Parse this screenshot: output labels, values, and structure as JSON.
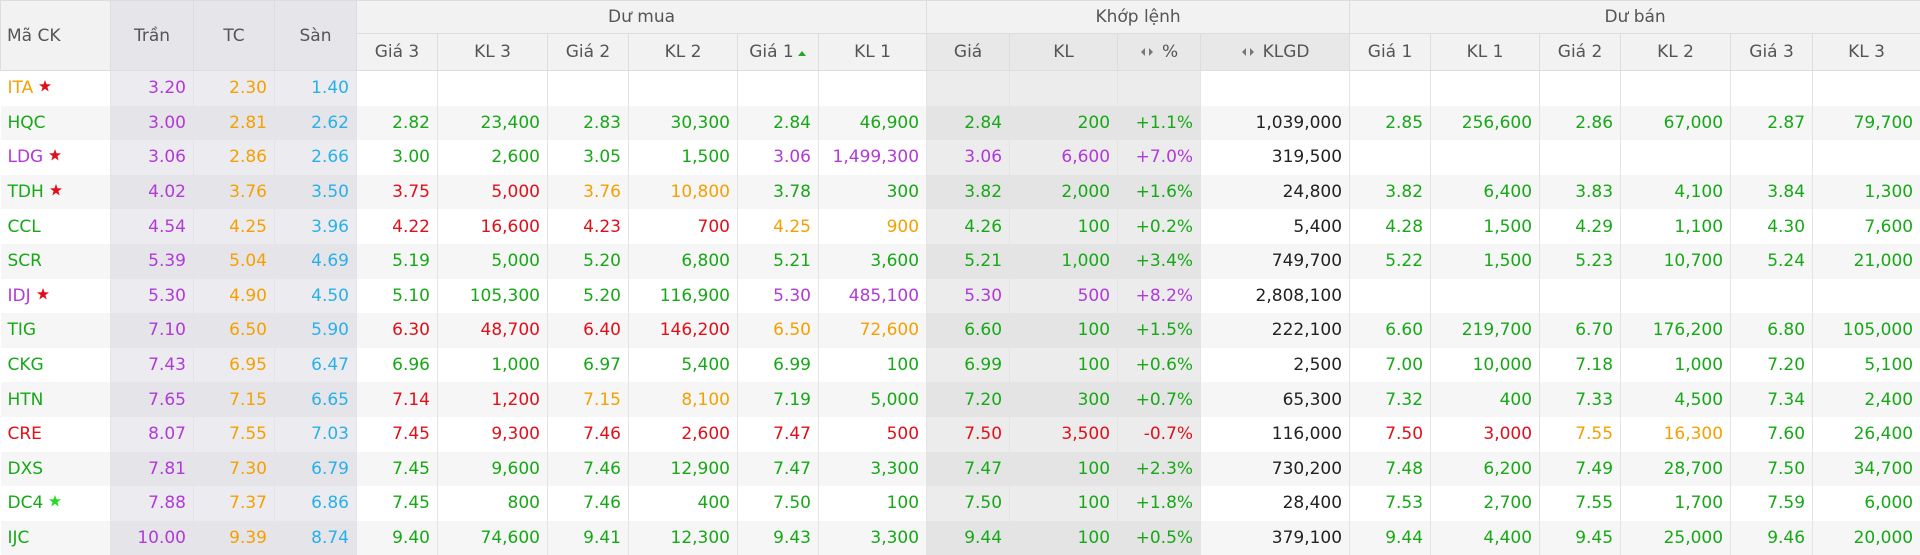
{
  "fixed_headers": [
    "Mã CK",
    "Trần",
    "TC",
    "Sàn"
  ],
  "groups": [
    "Dư mua",
    "Khớp lệnh",
    "Dư bán"
  ],
  "sub_headers": [
    "Giá 3",
    "KL 3",
    "Giá 2",
    "KL 2",
    "Giá 1",
    "KL 1",
    "Giá",
    "KL",
    "%",
    "KLGD",
    "Giá 1",
    "KL 1",
    "Giá 2",
    "KL 2",
    "Giá 3",
    "KL 3"
  ],
  "rows": [
    {
      "star": "#e0101a",
      "cells": [
        "ITA",
        "3.20",
        "2.30",
        "1.40",
        null,
        null,
        null,
        null,
        null,
        null,
        null,
        null,
        null,
        null,
        null,
        null,
        null,
        null,
        null,
        null
      ]
    },
    {
      "cells": [
        "HQC",
        "3.00",
        "2.81",
        "2.62",
        "2.82",
        "23,400",
        "2.83",
        "30,300",
        "2.84",
        "46,900",
        "2.84",
        "200",
        "+1.1%",
        "1,039,000",
        "2.85",
        "256,600",
        "2.86",
        "67,000",
        "2.87",
        "79,700"
      ]
    },
    {
      "star": "#e0101a",
      "cells": [
        "LDG",
        "3.06",
        "2.86",
        "2.66",
        "3.00",
        "2,600",
        "3.05",
        "1,500",
        "3.06",
        "1,499,300",
        "3.06",
        "6,600",
        "+7.0%",
        "319,500",
        null,
        null,
        null,
        null,
        null,
        null
      ]
    },
    {
      "star": "#e0101a",
      "cells": [
        "TDH",
        "4.02",
        "3.76",
        "3.50",
        "3.75",
        "5,000",
        "3.76",
        "10,800",
        "3.78",
        "300",
        "3.82",
        "2,000",
        "+1.6%",
        "24,800",
        "3.82",
        "6,400",
        "3.83",
        "4,100",
        "3.84",
        "1,300"
      ]
    },
    {
      "cells": [
        "CCL",
        "4.54",
        "4.25",
        "3.96",
        "4.22",
        "16,600",
        "4.23",
        "700",
        "4.25",
        "900",
        "4.26",
        "100",
        "+0.2%",
        "5,400",
        "4.28",
        "1,500",
        "4.29",
        "1,100",
        "4.30",
        "7,600"
      ]
    },
    {
      "cells": [
        "SCR",
        "5.39",
        "5.04",
        "4.69",
        "5.19",
        "5,000",
        "5.20",
        "6,800",
        "5.21",
        "3,600",
        "5.21",
        "1,000",
        "+3.4%",
        "749,700",
        "5.22",
        "1,500",
        "5.23",
        "10,700",
        "5.24",
        "21,000"
      ]
    },
    {
      "star": "#e0101a",
      "cells": [
        "IDJ",
        "5.30",
        "4.90",
        "4.50",
        "5.10",
        "105,300",
        "5.20",
        "116,900",
        "5.30",
        "485,100",
        "5.30",
        "500",
        "+8.2%",
        "2,808,100",
        null,
        null,
        null,
        null,
        null,
        null
      ]
    },
    {
      "cells": [
        "TIG",
        "7.10",
        "6.50",
        "5.90",
        "6.30",
        "48,700",
        "6.40",
        "146,200",
        "6.50",
        "72,600",
        "6.60",
        "100",
        "+1.5%",
        "222,100",
        "6.60",
        "219,700",
        "6.70",
        "176,200",
        "6.80",
        "105,000"
      ]
    },
    {
      "cells": [
        "CKG",
        "7.43",
        "6.95",
        "6.47",
        "6.96",
        "1,000",
        "6.97",
        "5,400",
        "6.99",
        "100",
        "6.99",
        "100",
        "+0.6%",
        "2,500",
        "7.00",
        "10,000",
        "7.18",
        "1,000",
        "7.20",
        "5,100"
      ]
    },
    {
      "cells": [
        "HTN",
        "7.65",
        "7.15",
        "6.65",
        "7.14",
        "1,200",
        "7.15",
        "8,100",
        "7.19",
        "5,000",
        "7.20",
        "300",
        "+0.7%",
        "65,300",
        "7.32",
        "400",
        "7.33",
        "4,500",
        "7.34",
        "2,400"
      ]
    },
    {
      "cells": [
        "CRE",
        "8.07",
        "7.55",
        "7.03",
        "7.45",
        "9,300",
        "7.46",
        "2,600",
        "7.47",
        "500",
        "7.50",
        "3,500",
        "-0.7%",
        "116,000",
        "7.50",
        "3,000",
        "7.55",
        "16,300",
        "7.60",
        "26,400"
      ]
    },
    {
      "cells": [
        "DXS",
        "7.81",
        "7.30",
        "6.79",
        "7.45",
        "9,600",
        "7.46",
        "12,900",
        "7.47",
        "3,300",
        "7.47",
        "100",
        "+2.3%",
        "730,200",
        "7.48",
        "6,200",
        "7.49",
        "28,700",
        "7.50",
        "34,700"
      ]
    },
    {
      "star": "#22dd22",
      "cells": [
        "DC4",
        "7.88",
        "7.37",
        "6.86",
        "7.45",
        "800",
        "7.46",
        "400",
        "7.50",
        "100",
        "7.50",
        "100",
        "+1.8%",
        "28,400",
        "7.53",
        "2,700",
        "7.55",
        "1,700",
        "7.59",
        "6,000"
      ]
    },
    {
      "cells": [
        "IJC",
        "10.00",
        "9.39",
        "8.74",
        "9.40",
        "74,600",
        "9.41",
        "12,300",
        "9.43",
        "3,300",
        "9.44",
        "100",
        "+0.5%",
        "379,100",
        "9.44",
        "4,400",
        "9.45",
        "25,000",
        "9.46",
        "20,000"
      ]
    }
  ]
}
